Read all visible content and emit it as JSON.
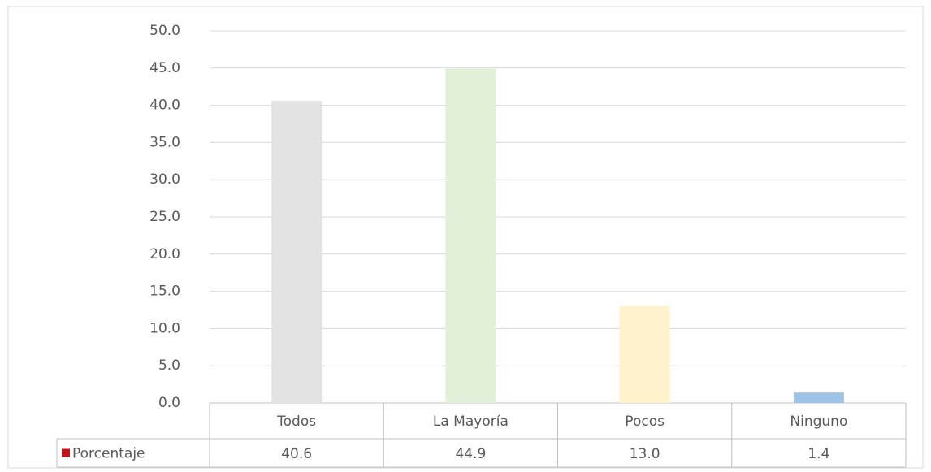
{
  "chart_data": {
    "type": "bar",
    "categories": [
      "Todos",
      "La Mayoría",
      "Pocos",
      "Ninguno"
    ],
    "series": [
      {
        "name": "Porcentaje",
        "color": "#c0141c",
        "values": [
          40.6,
          44.9,
          13.0,
          1.4
        ],
        "value_labels": [
          "40.6",
          "44.9",
          "13.0",
          "1.4"
        ],
        "point_colors": [
          "#e3e3e3",
          "#e2efd9",
          "#fff2cc",
          "#9dc3e6"
        ]
      }
    ],
    "ylim": [
      0,
      50
    ],
    "yticks": [
      {
        "value": 0,
        "label": "0.0"
      },
      {
        "value": 5,
        "label": "5.0"
      },
      {
        "value": 10,
        "label": "10.0"
      },
      {
        "value": 15,
        "label": "15.0"
      },
      {
        "value": 20,
        "label": "20.0"
      },
      {
        "value": 25,
        "label": "25.0"
      },
      {
        "value": 30,
        "label": "30.0"
      },
      {
        "value": 35,
        "label": "35.0"
      },
      {
        "value": 40,
        "label": "40.0"
      },
      {
        "value": 45,
        "label": "45.0"
      },
      {
        "value": 50,
        "label": "50.0"
      }
    ],
    "grid": true,
    "data_table": true
  }
}
